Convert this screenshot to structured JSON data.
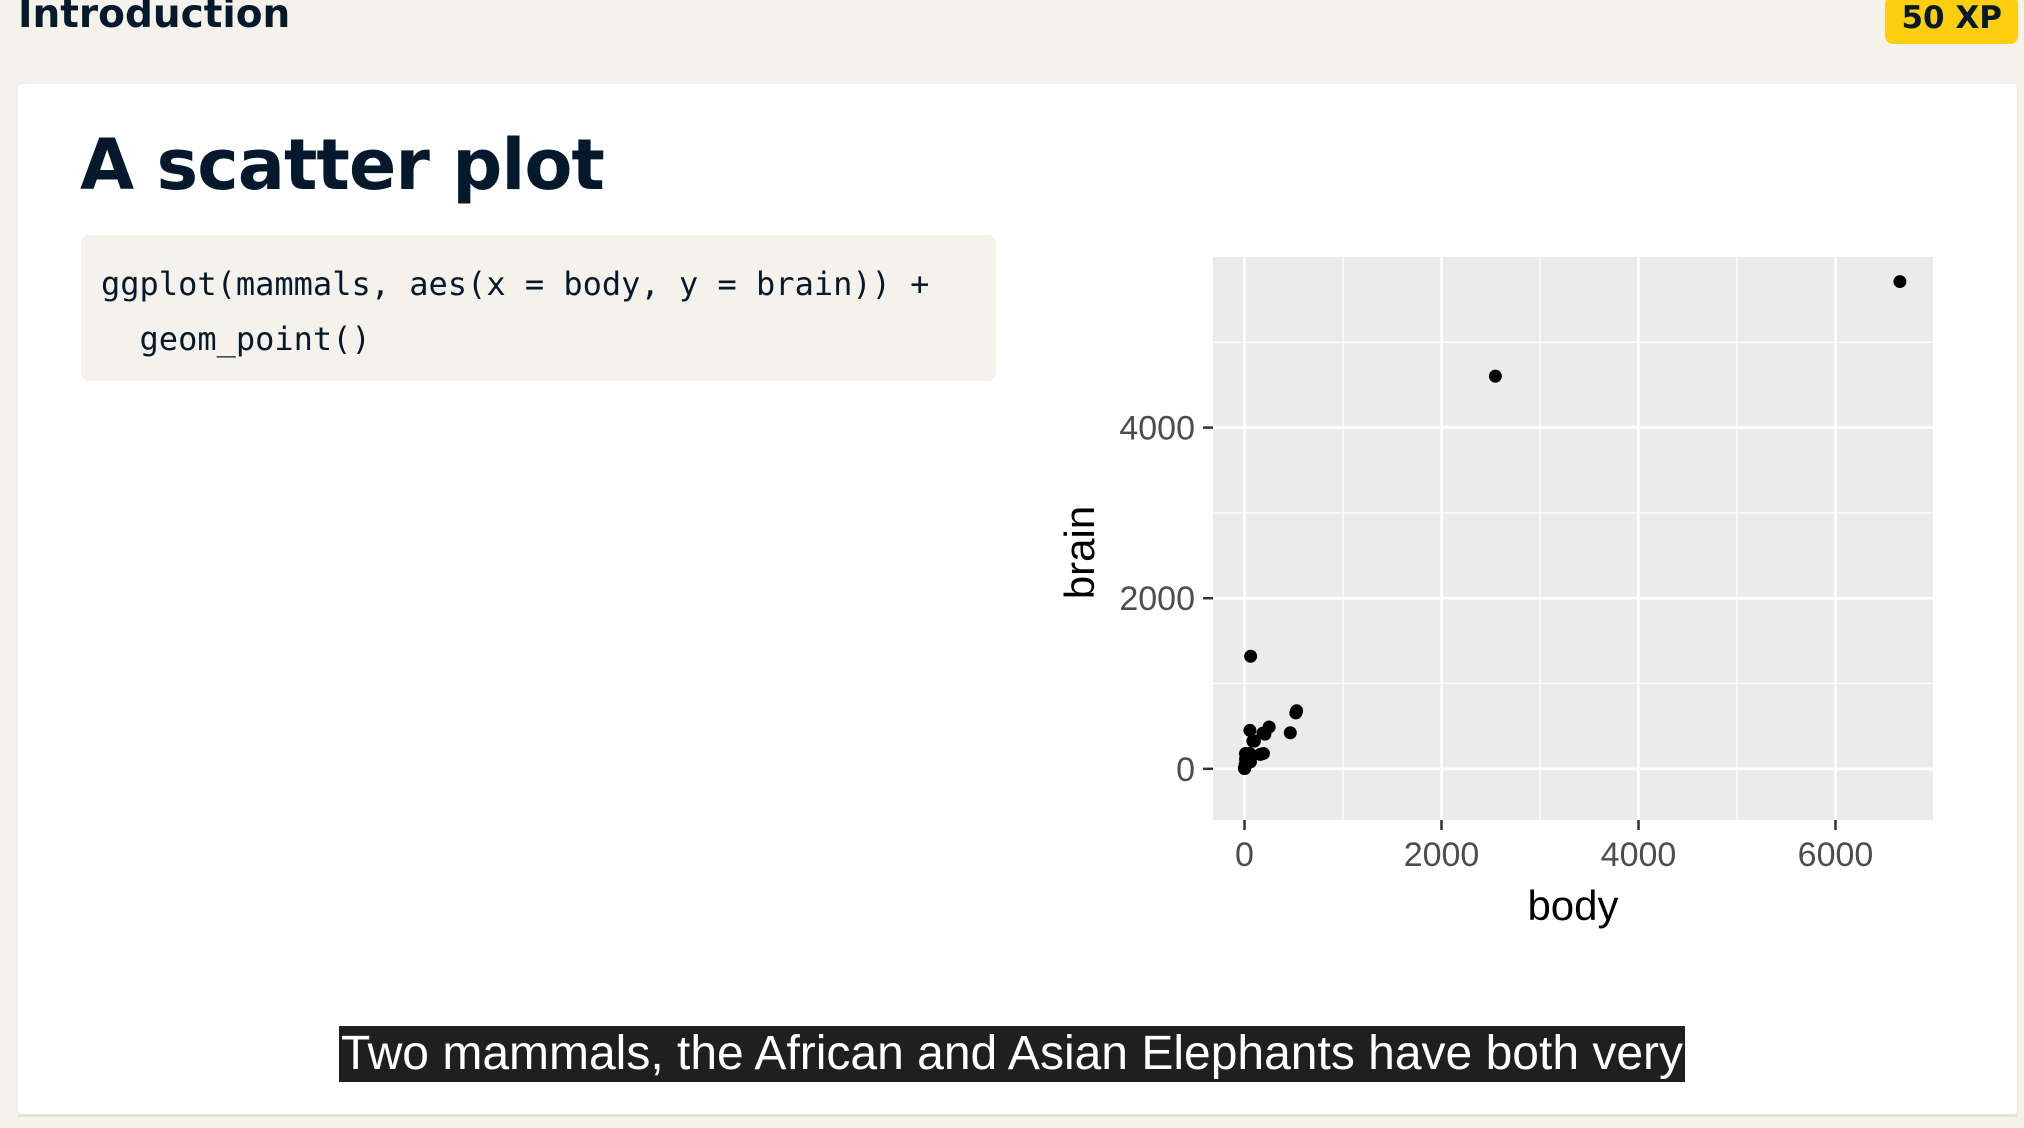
{
  "header": {
    "section_title": "Introduction",
    "xp_badge": "50 XP"
  },
  "slide": {
    "title": "A scatter plot",
    "code_lines": [
      "ggplot(mammals, aes(x = body, y = brain)) +",
      "  geom_point()"
    ]
  },
  "caption": {
    "text": "Two mammals, the African and Asian Elephants have both very"
  },
  "chart_data": {
    "type": "scatter",
    "xlabel": "body",
    "ylabel": "brain",
    "xlim": [
      -320,
      6990
    ],
    "ylim": [
      -600,
      6000
    ],
    "x_ticks": [
      0,
      2000,
      4000,
      6000
    ],
    "y_ticks": [
      0,
      2000,
      4000
    ],
    "x_tick_labels": [
      "0",
      "2000",
      "4000",
      "6000"
    ],
    "y_tick_labels": [
      "0",
      "2000",
      "4000"
    ],
    "grid": true,
    "points": [
      {
        "x": 6654,
        "y": 5712
      },
      {
        "x": 2547,
        "y": 4603
      },
      {
        "x": 62,
        "y": 1320
      },
      {
        "x": 521,
        "y": 655
      },
      {
        "x": 529,
        "y": 680
      },
      {
        "x": 465,
        "y": 423
      },
      {
        "x": 250,
        "y": 490
      },
      {
        "x": 207,
        "y": 406
      },
      {
        "x": 187,
        "y": 419
      },
      {
        "x": 55,
        "y": 450
      },
      {
        "x": 100,
        "y": 325
      },
      {
        "x": 85,
        "y": 325
      },
      {
        "x": 192,
        "y": 180
      },
      {
        "x": 160,
        "y": 169
      },
      {
        "x": 60,
        "y": 81
      },
      {
        "x": 52,
        "y": 180
      },
      {
        "x": 36,
        "y": 119
      },
      {
        "x": 27,
        "y": 115
      },
      {
        "x": 10,
        "y": 179
      },
      {
        "x": 10,
        "y": 115
      },
      {
        "x": 6,
        "y": 50
      },
      {
        "x": 4,
        "y": 25
      },
      {
        "x": 3,
        "y": 25
      },
      {
        "x": 1,
        "y": 12
      },
      {
        "x": 0.1,
        "y": 4
      },
      {
        "x": 2,
        "y": 12
      },
      {
        "x": 0.5,
        "y": 3
      },
      {
        "x": 3.5,
        "y": 10
      },
      {
        "x": 1.4,
        "y": 12
      },
      {
        "x": 14,
        "y": 98
      }
    ],
    "colors": {
      "panel": "#ebebeb",
      "grid": "#ffffff",
      "point": "#000000",
      "tick_text": "#4d4d4d",
      "axis_title": "#000000"
    }
  }
}
